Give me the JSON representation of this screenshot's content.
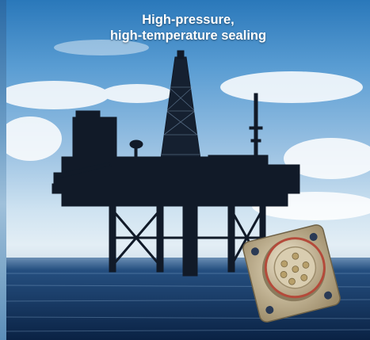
{
  "headline": {
    "line1": "High-pressure,",
    "line2": "high-temperature sealing"
  },
  "colors": {
    "sky_top": "#2a78ba",
    "sky_horizon": "#e3eef5",
    "sea": "#123a66",
    "platform": "#121c2a",
    "connector": "#b9ab8c",
    "frame": "#e9e2cf"
  },
  "image": {
    "scene": "offshore-oil-platform",
    "product": "circular-connector"
  }
}
